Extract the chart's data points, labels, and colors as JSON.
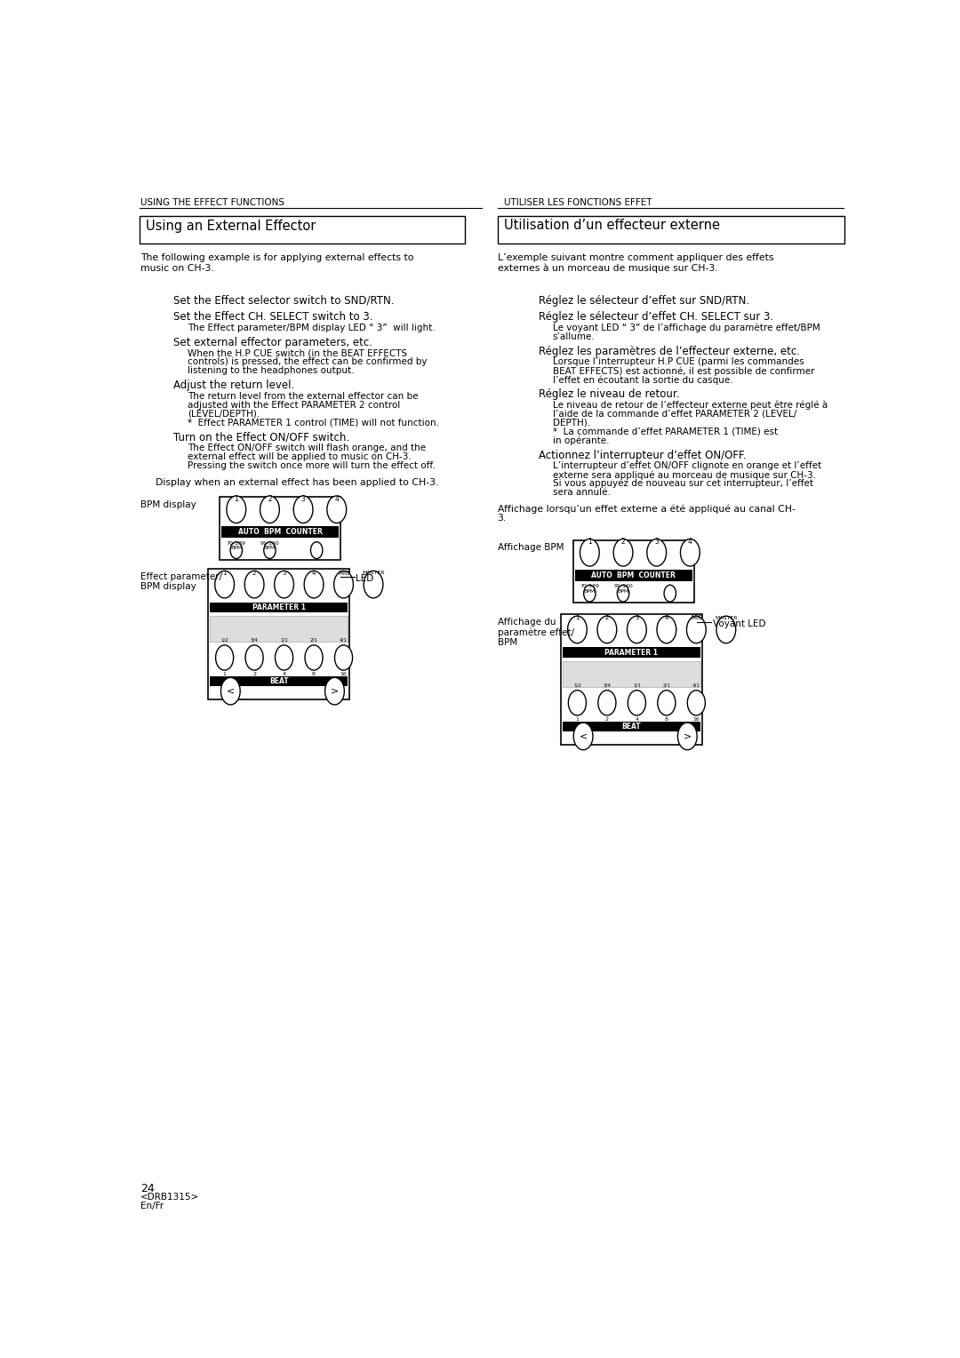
{
  "bg_color": "#ffffff",
  "text_color": "#000000",
  "page_width": 10.8,
  "page_height": 15.28,
  "left_header": "USING THE EFFECT FUNCTIONS",
  "right_header": "UTILISER LES FONCTIONS EFFET",
  "left_section_title": "Using an External Effector",
  "right_section_title": "Utilisation d’un effecteur externe",
  "left_intro": "The following example is for applying external effects to\nmusic on CH-3.",
  "right_intro": "L’exemple suivant montre comment appliquer des effets\nexternes à un morceau de musique sur CH-3.",
  "left_steps": [
    {
      "bold": "Set the Effect selector switch to SND/RTN.",
      "detail": ""
    },
    {
      "bold": "Set the Effect CH. SELECT switch to 3.",
      "detail": "The Effect parameter/BPM display LED “ 3”  will light."
    },
    {
      "bold": "Set external effector parameters, etc.",
      "detail": "When the H.P CUE switch (in the BEAT EFFECTS\ncontrols) is pressed, the effect can be confirmed by\nlistening to the headphones output."
    },
    {
      "bold": "Adjust the return level.",
      "detail": "The return level from the external effector can be\nadjusted with the Effect PARAMETER 2 control\n(LEVEL/DEPTH).\n*  Effect PARAMETER 1 control (TIME) will not function."
    },
    {
      "bold": "Turn on the Effect ON/OFF switch.",
      "detail": "The Effect ON/OFF switch will flash orange, and the\nexternal effect will be applied to music on CH-3.\nPressing the switch once more will turn the effect off."
    }
  ],
  "left_display_text": "Display when an external effect has been applied to CH-3.",
  "left_label1": "BPM display",
  "left_label2": "Effect parameter/\nBPM display",
  "left_led_label": "LED",
  "right_steps": [
    {
      "bold": "Réglez le sélecteur d’effet sur SND/RTN.",
      "detail": ""
    },
    {
      "bold": "Réglez le sélecteur d’effet CH. SELECT sur 3.",
      "detail": "Le voyant LED “ 3” de l’affichage du paramètre effet/BPM\ns’allume."
    },
    {
      "bold": "Réglez les paramètres de l’effecteur externe, etc.",
      "detail": "Lorsque l’interrupteur H.P CUE (parmi les commandes\nBEAT EFFECTS) est actionné, il est possible de confirmer\nl’effet en écoutant la sortie du casque."
    },
    {
      "bold": "Réglez le niveau de retour.",
      "detail": "Le niveau de retour de l’effecteur externe peut être réglé à\nl’aide de la commande d’effet PARAMETER 2 (LEVEL/\nDEPTH).\n*  La commande d’effet PARAMETER 1 (TIME) est\nin opérante."
    },
    {
      "bold": "Actionnez l’interrupteur d’effet ON/OFF.",
      "detail": "L’interrupteur d’effet ON/OFF clignote en orange et l’effet\nexterne sera appliqué au morceau de musique sur CH-3.\nSi vous appuyez de nouveau sur cet interrupteur, l’effet\nsera annulé."
    }
  ],
  "right_display_text": "Affichage lorsqu’un effet externe a été appliqué au canal CH-\n3.",
  "right_label1": "Affichage BPM",
  "right_label2": "Affichage du\nparamètre effet/\nBPM",
  "right_led_label": "Voyant LED",
  "footer_page": "24",
  "footer_model": "<DRB1315>",
  "footer_lang": "En/Fr"
}
